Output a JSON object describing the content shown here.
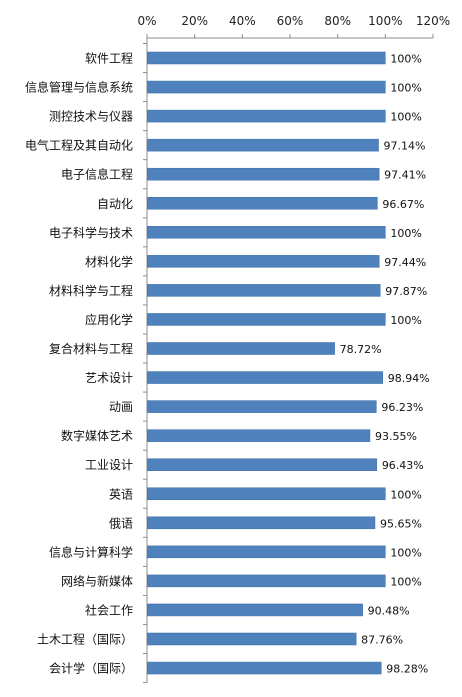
{
  "chart_data": {
    "type": "bar",
    "orientation": "horizontal",
    "categories": [
      "软件工程",
      "信息管理与信息系统",
      "测控技术与仪器",
      "电气工程及其自动化",
      "电子信息工程",
      "自动化",
      "电子科学与技术",
      "材料化学",
      "材料科学与工程",
      "应用化学",
      "复合材料与工程",
      "艺术设计",
      "动画",
      "数字媒体艺术",
      "工业设计",
      "英语",
      "俄语",
      "信息与计算科学",
      "网络与新媒体",
      "社会工作",
      "土木工程（国际）",
      "会计学（国际）"
    ],
    "values": [
      100,
      100,
      100,
      97.14,
      97.41,
      96.67,
      100,
      97.44,
      97.87,
      100,
      78.72,
      98.94,
      96.23,
      93.55,
      96.43,
      100,
      95.65,
      100,
      100,
      90.48,
      87.76,
      98.28
    ],
    "data_labels": [
      "100%",
      "100%",
      "100%",
      "97.14%",
      "97.41%",
      "96.67%",
      "100%",
      "97.44%",
      "97.87%",
      "100%",
      "78.72%",
      "98.94%",
      "96.23%",
      "93.55%",
      "96.43%",
      "100%",
      "95.65%",
      "100%",
      "100%",
      "90.48%",
      "87.76%",
      "98.28%"
    ],
    "x_ticks": [
      "0%",
      "20%",
      "40%",
      "60%",
      "80%",
      "100%",
      "120%"
    ],
    "x_tick_values": [
      0,
      20,
      40,
      60,
      80,
      100,
      120
    ],
    "xlim": [
      0,
      120
    ],
    "x_axis_position": "top",
    "grid": false,
    "legend": "none",
    "title": "",
    "xlabel": "",
    "ylabel": "",
    "colors": {
      "bar": "#4f81bd",
      "bar_edge": "#3a6ea5",
      "axis": "#8c8c8c"
    }
  }
}
